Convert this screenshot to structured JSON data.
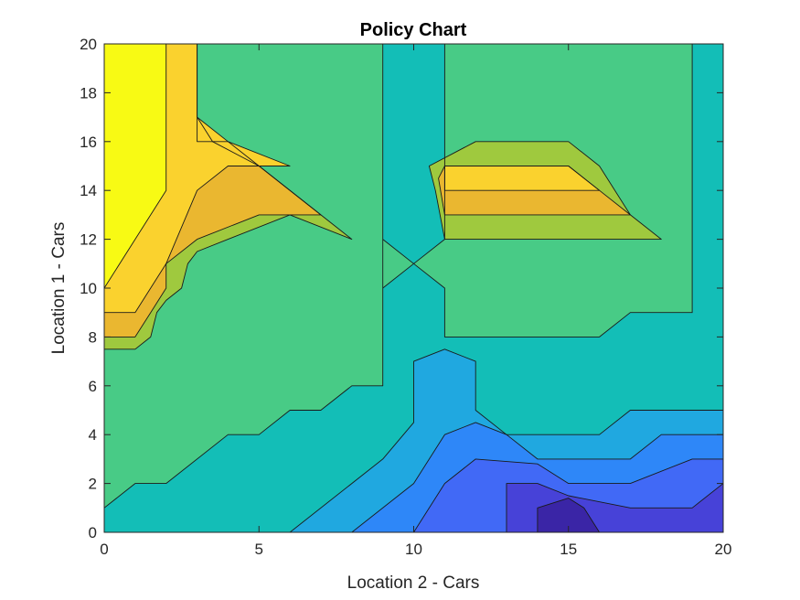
{
  "chart_data": {
    "type": "contourf",
    "title": "Policy Chart",
    "xlabel": "Location 2 - Cars",
    "ylabel": "Location 1 - Cars",
    "xlim": [
      0,
      20
    ],
    "ylim": [
      0,
      20
    ],
    "xticks": [
      "0",
      "5",
      "10",
      "15",
      "20"
    ],
    "yticks": [
      "0",
      "2",
      "4",
      "6",
      "8",
      "10",
      "12",
      "14",
      "16",
      "18",
      "20"
    ],
    "grid": false,
    "legend": "none",
    "colormap": "parula",
    "regions": [
      {
        "color": "#13BEB7",
        "polygons": [
          [
            [
              0,
              0
            ],
            [
              20,
              0
            ],
            [
              20,
              20
            ],
            [
              0,
              20
            ]
          ]
        ]
      },
      {
        "color": "#48CB86",
        "polygons": [
          [
            [
              0,
              1
            ],
            [
              1,
              2
            ],
            [
              2,
              2
            ],
            [
              4,
              4
            ],
            [
              5,
              4
            ],
            [
              6,
              5
            ],
            [
              7,
              5
            ],
            [
              8,
              6
            ],
            [
              9,
              6
            ],
            [
              9,
              12
            ],
            [
              10,
              11
            ],
            [
              9,
              10
            ],
            [
              9,
              20
            ],
            [
              0,
              20
            ]
          ],
          [
            [
              10,
              11
            ],
            [
              11,
              12
            ],
            [
              11,
              20
            ],
            [
              19,
              20
            ],
            [
              19,
              9
            ],
            [
              17,
              9
            ],
            [
              16,
              8
            ],
            [
              11,
              8
            ],
            [
              11,
              10
            ]
          ]
        ]
      },
      {
        "color": "#9FC93E",
        "polygons": [
          [
            [
              0,
              7.5
            ],
            [
              1,
              7.5
            ],
            [
              1.5,
              8
            ],
            [
              1.7,
              9
            ],
            [
              2,
              9.5
            ],
            [
              2.5,
              10
            ],
            [
              2.7,
              11
            ],
            [
              3,
              11.5
            ],
            [
              4,
              12
            ],
            [
              6,
              13
            ],
            [
              8,
              12
            ],
            [
              7,
              13
            ],
            [
              5,
              15
            ],
            [
              4,
              16
            ],
            [
              3,
              16
            ],
            [
              3,
              20
            ],
            [
              0,
              20
            ]
          ],
          [
            [
              11,
              12
            ],
            [
              18,
              12
            ],
            [
              17,
              13
            ],
            [
              16,
              15
            ],
            [
              15,
              16
            ],
            [
              12,
              16
            ],
            [
              10.5,
              15
            ],
            [
              10.7,
              14
            ]
          ]
        ]
      },
      {
        "color": "#EAB730",
        "polygons": [
          [
            [
              0,
              8
            ],
            [
              1,
              8
            ],
            [
              1.5,
              9
            ],
            [
              2,
              10
            ],
            [
              2,
              11
            ],
            [
              3,
              12
            ],
            [
              5,
              13
            ],
            [
              7,
              13
            ],
            [
              5,
              15
            ],
            [
              3.5,
              16
            ],
            [
              3,
              17
            ],
            [
              3,
              20
            ],
            [
              0,
              20
            ]
          ],
          [
            [
              11,
              13
            ],
            [
              17,
              13
            ],
            [
              16,
              14
            ],
            [
              15,
              15
            ],
            [
              11,
              15
            ],
            [
              10.8,
              14.5
            ]
          ]
        ]
      },
      {
        "color": "#FAD22E",
        "polygons": [
          [
            [
              0,
              9
            ],
            [
              1,
              9
            ],
            [
              2,
              11
            ],
            [
              3,
              14
            ],
            [
              4,
              15
            ],
            [
              6,
              15
            ],
            [
              4,
              16
            ],
            [
              3,
              17
            ],
            [
              3,
              20
            ],
            [
              0,
              20
            ]
          ],
          [
            [
              11,
              14
            ],
            [
              16,
              14
            ],
            [
              15,
              15
            ],
            [
              11,
              15
            ]
          ]
        ]
      },
      {
        "color": "#F8FA14",
        "polygons": [
          [
            [
              0,
              10
            ],
            [
              2,
              14
            ],
            [
              2,
              20
            ],
            [
              0,
              20
            ]
          ]
        ]
      },
      {
        "color": "#20A8E0",
        "polygons": [
          [
            [
              6,
              0
            ],
            [
              9,
              3
            ],
            [
              10,
              4.5
            ],
            [
              10,
              7
            ],
            [
              11,
              7.5
            ],
            [
              12,
              7
            ],
            [
              12,
              5
            ],
            [
              13,
              4
            ],
            [
              16,
              4
            ],
            [
              17,
              5
            ],
            [
              20,
              5
            ],
            [
              20,
              0
            ]
          ]
        ]
      },
      {
        "color": "#2E87F8",
        "polygons": [
          [
            [
              8,
              0
            ],
            [
              10,
              2
            ],
            [
              11,
              4
            ],
            [
              12,
              4.5
            ],
            [
              13,
              4
            ],
            [
              14,
              3
            ],
            [
              17,
              3
            ],
            [
              18,
              4
            ],
            [
              20,
              4
            ],
            [
              20,
              0
            ]
          ]
        ]
      },
      {
        "color": "#4169F6",
        "polygons": [
          [
            [
              10,
              0
            ],
            [
              11,
              2
            ],
            [
              12,
              3
            ],
            [
              14,
              2.8
            ],
            [
              15,
              2
            ],
            [
              17,
              2
            ],
            [
              19,
              3
            ],
            [
              20,
              3
            ],
            [
              20,
              0
            ]
          ]
        ]
      },
      {
        "color": "#4742D8",
        "polygons": [
          [
            [
              13,
              0
            ],
            [
              13,
              2
            ],
            [
              14,
              2
            ],
            [
              15,
              1.5
            ],
            [
              17,
              1
            ],
            [
              19,
              1
            ],
            [
              20,
              2
            ],
            [
              20,
              0
            ]
          ]
        ]
      },
      {
        "color": "#3A25A6",
        "polygons": [
          [
            [
              14,
              0
            ],
            [
              16,
              0
            ],
            [
              15.5,
              1
            ],
            [
              15,
              1.4
            ],
            [
              14,
              1
            ]
          ]
        ]
      }
    ],
    "contour_lines": [
      [
        [
          0,
          1
        ],
        [
          1,
          2
        ],
        [
          2,
          2
        ],
        [
          4,
          4
        ],
        [
          5,
          4
        ],
        [
          6,
          5
        ],
        [
          7,
          5
        ],
        [
          8,
          6
        ],
        [
          9,
          6
        ],
        [
          9,
          12
        ],
        [
          10,
          11
        ],
        [
          9,
          10
        ],
        [
          9,
          20
        ]
      ],
      [
        [
          10,
          11
        ],
        [
          11,
          12
        ],
        [
          11,
          20
        ]
      ],
      [
        [
          10,
          11
        ],
        [
          11,
          10
        ],
        [
          11,
          8
        ],
        [
          16,
          8
        ],
        [
          17,
          9
        ],
        [
          19,
          9
        ],
        [
          19,
          20
        ]
      ],
      [
        [
          6,
          0
        ],
        [
          9,
          3
        ],
        [
          10,
          4.5
        ],
        [
          10,
          7
        ],
        [
          11,
          7.5
        ],
        [
          12,
          7
        ],
        [
          12,
          5
        ],
        [
          13,
          4
        ],
        [
          16,
          4
        ],
        [
          17,
          5
        ],
        [
          20,
          5
        ]
      ],
      [
        [
          8,
          0
        ],
        [
          10,
          2
        ],
        [
          11,
          4
        ],
        [
          12,
          4.5
        ],
        [
          13,
          4
        ],
        [
          14,
          3
        ],
        [
          17,
          3
        ],
        [
          18,
          4
        ],
        [
          20,
          4
        ]
      ],
      [
        [
          10,
          0
        ],
        [
          11,
          2
        ],
        [
          12,
          3
        ],
        [
          14,
          2.8
        ],
        [
          15,
          2
        ],
        [
          17,
          2
        ],
        [
          19,
          3
        ],
        [
          20,
          3
        ]
      ],
      [
        [
          13,
          0
        ],
        [
          13,
          2
        ],
        [
          14,
          2
        ],
        [
          15,
          1.5
        ],
        [
          17,
          1
        ],
        [
          19,
          1
        ],
        [
          20,
          2
        ]
      ],
      [
        [
          14,
          0
        ],
        [
          14,
          1
        ],
        [
          15,
          1.4
        ],
        [
          15.5,
          1
        ],
        [
          16,
          0
        ]
      ],
      [
        [
          0,
          7.5
        ],
        [
          1,
          7.5
        ],
        [
          1.5,
          8
        ],
        [
          1.7,
          9
        ],
        [
          2,
          9.5
        ],
        [
          2.5,
          10
        ],
        [
          2.7,
          11
        ],
        [
          3,
          11.5
        ],
        [
          4,
          12
        ],
        [
          6,
          13
        ],
        [
          8,
          12
        ],
        [
          7,
          13
        ],
        [
          5,
          15
        ],
        [
          4,
          16
        ],
        [
          3,
          16
        ],
        [
          3,
          20
        ]
      ],
      [
        [
          0,
          8
        ],
        [
          1,
          8
        ],
        [
          1.5,
          9
        ],
        [
          2,
          10
        ],
        [
          2,
          11
        ],
        [
          3,
          12
        ],
        [
          5,
          13
        ],
        [
          7,
          13
        ],
        [
          5,
          15
        ],
        [
          3.5,
          16
        ],
        [
          3,
          17
        ],
        [
          3,
          20
        ]
      ],
      [
        [
          0,
          9
        ],
        [
          1,
          9
        ],
        [
          2,
          11
        ],
        [
          3,
          14
        ],
        [
          4,
          15
        ],
        [
          6,
          15
        ],
        [
          4,
          16
        ],
        [
          3,
          17
        ]
      ],
      [
        [
          0,
          10
        ],
        [
          2,
          14
        ],
        [
          2,
          20
        ]
      ],
      [
        [
          11,
          12
        ],
        [
          18,
          12
        ],
        [
          17,
          13
        ],
        [
          16,
          15
        ],
        [
          15,
          16
        ],
        [
          12,
          16
        ],
        [
          10.5,
          15
        ],
        [
          10.7,
          14
        ],
        [
          11,
          12
        ]
      ],
      [
        [
          11,
          13
        ],
        [
          17,
          13
        ],
        [
          16,
          14
        ],
        [
          15,
          15
        ],
        [
          11,
          15
        ],
        [
          10.8,
          14.5
        ],
        [
          11,
          13
        ]
      ],
      [
        [
          11,
          14
        ],
        [
          16,
          14
        ],
        [
          15,
          15
        ],
        [
          11,
          15
        ],
        [
          11,
          14
        ]
      ],
      [
        [
          12,
          15
        ],
        [
          15,
          15
        ]
      ]
    ]
  }
}
